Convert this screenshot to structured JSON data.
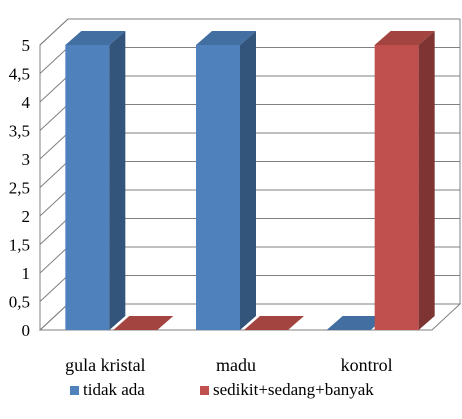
{
  "chart_data": {
    "type": "bar",
    "categories": [
      "gula kristal",
      "madu",
      "kontrol"
    ],
    "series": [
      {
        "name": "tidak ada",
        "values": [
          5,
          5,
          0
        ],
        "color": "#4f81bd"
      },
      {
        "name": "sedikit+sedang+banyak",
        "values": [
          0,
          0,
          5
        ],
        "color": "#c0504d"
      }
    ],
    "ylim": [
      0,
      5
    ],
    "yticks": [
      "0",
      "0,5",
      "1",
      "1,5",
      "2",
      "2,5",
      "3",
      "3,5",
      "4",
      "4,5",
      "5"
    ],
    "grid": true,
    "style": "3d",
    "legend_position": "bottom"
  }
}
